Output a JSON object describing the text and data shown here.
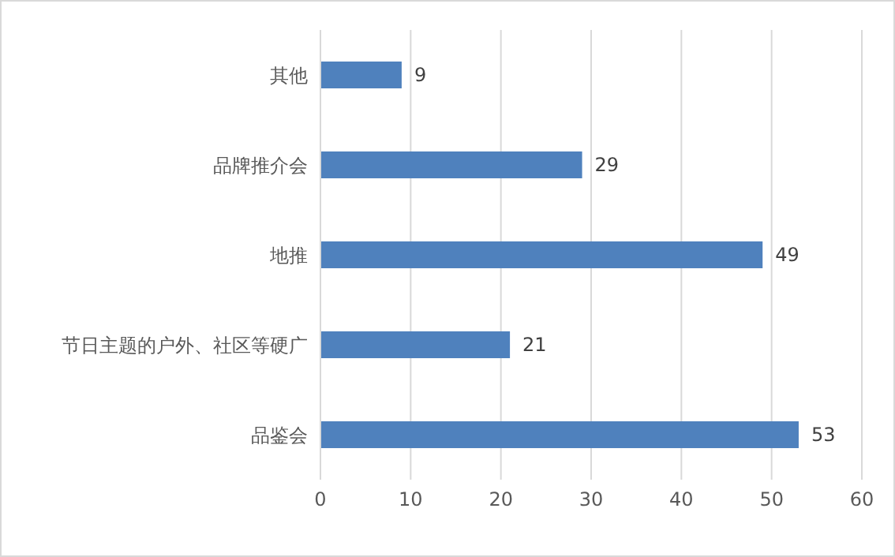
{
  "chart_data": {
    "type": "bar",
    "orientation": "horizontal",
    "categories": [
      "其他",
      "品牌推介会",
      "地推",
      "节日主题的户外、社区等硬广",
      "品鉴会"
    ],
    "values": [
      9,
      29,
      49,
      21,
      53
    ],
    "color": "#4f81bd",
    "xlim": [
      0,
      60
    ],
    "xticks": [
      0,
      10,
      20,
      30,
      40,
      50,
      60
    ],
    "grid": "x",
    "data_labels": true
  }
}
